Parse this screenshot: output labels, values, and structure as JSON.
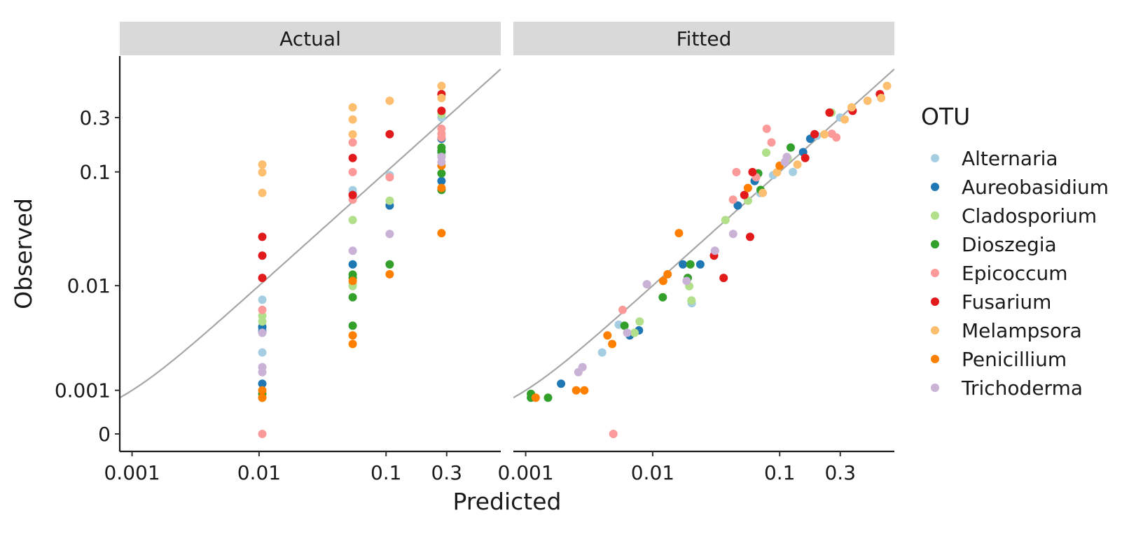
{
  "chart_data": {
    "type": "scatter",
    "facets": [
      "Actual",
      "Fitted"
    ],
    "xlabel": "Predicted",
    "ylabel": "Observed",
    "x_scale": "log",
    "y_scale": "pseudo-log",
    "x_ticks": [
      "0.001",
      "0.01",
      "0.1",
      "0.3"
    ],
    "y_ticks": [
      "0",
      "0.001",
      "0.01",
      "0.1",
      "0.3"
    ],
    "x_tick_values": [
      0.001,
      0.01,
      0.1,
      0.3
    ],
    "y_tick_values": [
      0,
      0.001,
      0.01,
      0.1,
      0.3
    ],
    "xlim": [
      0.0008,
      0.8
    ],
    "reference_line": "y = x",
    "legend": {
      "title": "OTU",
      "position": "right"
    },
    "series": [
      {
        "name": "Alternaria",
        "color": "#A6CEE3",
        "actual": [
          [
            0.0106,
            0.0075
          ],
          [
            0.0106,
            0.0025
          ],
          [
            0.0106,
            0.0041
          ],
          [
            0.0546,
            0.0691
          ],
          [
            0.0546,
            0.0652
          ],
          [
            0.1068,
            0.0936
          ],
          [
            0.2734,
            0.3005
          ],
          [
            0.2734,
            0.1427
          ]
        ],
        "fitted": [
          [
            0.0054,
            0.0045
          ],
          [
            0.004,
            0.0025
          ],
          [
            0.0203,
            0.007
          ],
          [
            0.0711,
            0.0668
          ],
          [
            0.07,
            0.0652
          ],
          [
            0.0888,
            0.0936
          ],
          [
            0.127,
            0.0998
          ],
          [
            0.2992,
            0.3005
          ],
          [
            0.1964,
            0.2077
          ]
        ]
      },
      {
        "name": "Aureobasidium",
        "color": "#1F78B4",
        "actual": [
          [
            0.0106,
            0.0043
          ],
          [
            0.0106,
            0.0039
          ],
          [
            0.0106,
            0.0012
          ],
          [
            0.0546,
            0.0154
          ],
          [
            0.1068,
            0.0507
          ],
          [
            0.2734,
            0.0832
          ],
          [
            0.2734,
            0.1954
          ],
          [
            0.2734,
            0.1492
          ]
        ],
        "fitted": [
          [
            0.0066,
            0.0036
          ],
          [
            0.0078,
            0.004
          ],
          [
            0.0019,
            0.0012
          ],
          [
            0.0173,
            0.0154
          ],
          [
            0.0237,
            0.0154
          ],
          [
            0.0468,
            0.0507
          ],
          [
            0.0635,
            0.0832
          ],
          [
            0.174,
            0.1954
          ],
          [
            0.153,
            0.1492
          ]
        ]
      },
      {
        "name": "Cladosporium",
        "color": "#B2DF8A",
        "actual": [
          [
            0.0106,
            0.0054
          ],
          [
            0.0106,
            0.0048
          ],
          [
            0.0546,
            0.0378
          ],
          [
            0.0546,
            0.0099
          ],
          [
            0.0546,
            0.0103
          ],
          [
            0.1068,
            0.0559
          ],
          [
            0.2734,
            0.3218
          ],
          [
            0.2734,
            0.3317
          ],
          [
            0.2734,
            0.1392
          ]
        ],
        "fitted": [
          [
            0.0079,
            0.0048
          ],
          [
            0.0072,
            0.0038
          ],
          [
            0.0202,
            0.0074
          ],
          [
            0.0194,
            0.0099
          ],
          [
            0.0374,
            0.0378
          ],
          [
            0.0563,
            0.0559
          ],
          [
            0.0783,
            0.1477
          ],
          [
            0.1157,
            0.1314
          ],
          [
            0.2558,
            0.3317
          ]
        ]
      },
      {
        "name": "Dioszegia",
        "color": "#33A02C",
        "actual": [
          [
            0.0106,
            0.0009
          ],
          [
            0.0106,
            0.0008
          ],
          [
            0.0546,
            0.0125
          ],
          [
            0.0546,
            0.0117
          ],
          [
            0.0546,
            0.0079
          ],
          [
            0.0546,
            0.0044
          ],
          [
            0.1068,
            0.0154
          ],
          [
            0.2734,
            0.164
          ],
          [
            0.2734,
            0.153
          ],
          [
            0.2734,
            0.097
          ],
          [
            0.2734,
            0.0694
          ]
        ],
        "fitted": [
          [
            0.0011,
            0.0009
          ],
          [
            0.0011,
            0.0008
          ],
          [
            0.0015,
            0.0008
          ],
          [
            0.006,
            0.0044
          ],
          [
            0.012,
            0.0079
          ],
          [
            0.0189,
            0.0117
          ],
          [
            0.0198,
            0.0154
          ],
          [
            0.0708,
            0.0694
          ],
          [
            0.0678,
            0.097
          ],
          [
            0.1222,
            0.164
          ]
        ]
      },
      {
        "name": "Epicoccum",
        "color": "#FB9A99",
        "actual": [
          [
            0.0106,
            0.0
          ],
          [
            0.0106,
            0.0061
          ],
          [
            0.0546,
            0.1815
          ],
          [
            0.0546,
            0.0996
          ],
          [
            0.0546,
            0.057
          ],
          [
            0.1068,
            0.0897
          ],
          [
            0.2734,
            0.2393
          ],
          [
            0.2734,
            0.2162
          ],
          [
            0.2734,
            0.2007
          ]
        ],
        "fitted": [
          [
            0.0049,
            0.0
          ],
          [
            0.0058,
            0.0061
          ],
          [
            0.0429,
            0.057
          ],
          [
            0.0456,
            0.0996
          ],
          [
            0.0652,
            0.0897
          ],
          [
            0.079,
            0.2393
          ],
          [
            0.0862,
            0.1815
          ],
          [
            0.2575,
            0.2162
          ],
          [
            0.2792,
            0.2007
          ]
        ]
      },
      {
        "name": "Fusarium",
        "color": "#E31A1C",
        "actual": [
          [
            0.0106,
            0.0269
          ],
          [
            0.0106,
            0.0184
          ],
          [
            0.0106,
            0.0117
          ],
          [
            0.0546,
            0.1325
          ],
          [
            0.0546,
            0.0627
          ],
          [
            0.1068,
            0.2141
          ],
          [
            0.2734,
            0.4817
          ],
          [
            0.2734,
            0.3435
          ]
        ],
        "fitted": [
          [
            0.0304,
            0.0184
          ],
          [
            0.0362,
            0.0117
          ],
          [
            0.0585,
            0.0269
          ],
          [
            0.0527,
            0.0627
          ],
          [
            0.0611,
            0.0996
          ],
          [
            0.1588,
            0.1325
          ],
          [
            0.1883,
            0.2141
          ],
          [
            0.3752,
            0.3435
          ],
          [
            0.6148,
            0.4817
          ],
          [
            0.2469,
            0.3317
          ]
        ]
      },
      {
        "name": "Melampsora",
        "color": "#FDBF6F",
        "actual": [
          [
            0.0106,
            0.116
          ],
          [
            0.0106,
            0.0992
          ],
          [
            0.0106,
            0.0654
          ],
          [
            0.0546,
            0.3688
          ],
          [
            0.0546,
            0.2887
          ],
          [
            0.0546,
            0.2135
          ],
          [
            0.1068,
            0.4215
          ],
          [
            0.2734,
            0.5694
          ],
          [
            0.2734,
            0.4461
          ]
        ],
        "fitted": [
          [
            0.0736,
            0.0654
          ],
          [
            0.0952,
            0.0992
          ],
          [
            0.138,
            0.116
          ],
          [
            0.225,
            0.2135
          ],
          [
            0.3251,
            0.2887
          ],
          [
            0.3688,
            0.3688
          ],
          [
            0.492,
            0.4215
          ],
          [
            0.63,
            0.4461
          ],
          [
            0.7,
            0.5694
          ]
        ]
      },
      {
        "name": "Penicillium",
        "color": "#FF7F00",
        "actual": [
          [
            0.0106,
            0.001
          ],
          [
            0.0106,
            0.0008
          ],
          [
            0.0546,
            0.011
          ],
          [
            0.0546,
            0.0036
          ],
          [
            0.0546,
            0.003
          ],
          [
            0.1068,
            0.0126
          ],
          [
            0.2734,
            0.1134
          ],
          [
            0.2734,
            0.0722
          ],
          [
            0.2734,
            0.029
          ]
        ],
        "fitted": [
          [
            0.0012,
            0.0008
          ],
          [
            0.0025,
            0.001
          ],
          [
            0.0029,
            0.001
          ],
          [
            0.0044,
            0.0036
          ],
          [
            0.0048,
            0.003
          ],
          [
            0.0121,
            0.011
          ],
          [
            0.0131,
            0.0126
          ],
          [
            0.0161,
            0.029
          ],
          [
            0.0562,
            0.0722
          ],
          [
            0.1,
            0.1134
          ]
        ]
      },
      {
        "name": "Trichoderma",
        "color": "#CAB2D6",
        "actual": [
          [
            0.0106,
            0.0018
          ],
          [
            0.0106,
            0.0016
          ],
          [
            0.0106,
            0.0038
          ],
          [
            0.0546,
            0.0203
          ],
          [
            0.1068,
            0.0285
          ],
          [
            0.2734,
            0.1354
          ],
          [
            0.2734,
            0.1222
          ]
        ],
        "fitted": [
          [
            0.0028,
            0.0018
          ],
          [
            0.0026,
            0.0016
          ],
          [
            0.0063,
            0.0038
          ],
          [
            0.009,
            0.0103
          ],
          [
            0.0185,
            0.011
          ],
          [
            0.0309,
            0.0203
          ],
          [
            0.043,
            0.0285
          ],
          [
            0.1138,
            0.1354
          ],
          [
            0.11,
            0.1222
          ]
        ]
      }
    ]
  }
}
